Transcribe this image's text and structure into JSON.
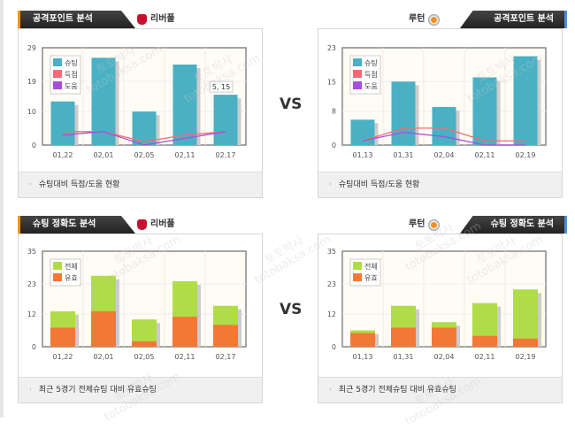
{
  "watermark": "토토박사 totobaksa.com",
  "vs": "VS",
  "colors": {
    "shots": "#4ab0c4",
    "goals": "#f46a74",
    "assists": "#a84ed8",
    "total": "#b0dc48",
    "valid": "#f47835"
  },
  "panels": [
    {
      "header": "공격포인트 분석",
      "team": "리버풀",
      "footer": "슈팅대비 득점/도움 현황",
      "chart_data": {
        "type": "bar+line",
        "categories": [
          "01,22",
          "02,01",
          "02,05",
          "02,11",
          "02,17"
        ],
        "yticks": [
          "0",
          "10",
          "19",
          "29"
        ],
        "ylim": [
          0,
          29
        ],
        "series": [
          {
            "name": "슈팅",
            "kind": "bar",
            "values": [
              13,
              26,
              10,
              24,
              15
            ]
          },
          {
            "name": "득점",
            "kind": "line",
            "values": [
              4,
              4,
              1,
              3,
              4
            ]
          },
          {
            "name": "도움",
            "kind": "line",
            "values": [
              3,
              4,
              0,
              2,
              4
            ]
          }
        ],
        "tooltip": "5, 15"
      }
    },
    {
      "header": "공격포인트 분석",
      "team": "루턴",
      "footer": "슈팅대비 득점/도움 현황",
      "chart_data": {
        "type": "bar+line",
        "categories": [
          "01,13",
          "01,31",
          "02,04",
          "02,11",
          "02,19"
        ],
        "yticks": [
          "0",
          "8",
          "15",
          "23"
        ],
        "ylim": [
          0,
          23
        ],
        "series": [
          {
            "name": "슈팅",
            "kind": "bar",
            "values": [
              6,
              15,
              9,
              16,
              21
            ]
          },
          {
            "name": "득점",
            "kind": "line",
            "values": [
              1,
              4,
              4,
              1,
              1
            ]
          },
          {
            "name": "도움",
            "kind": "line",
            "values": [
              1,
              3,
              2,
              0,
              0
            ]
          }
        ]
      }
    },
    {
      "header": "슈팅 정확도 분석",
      "team": "리버풀",
      "footer": "최근 5경기 전체슈팅 대비 유효슈팅",
      "chart_data": {
        "type": "bar",
        "categories": [
          "01,22",
          "02,01",
          "02,05",
          "02,11",
          "02,17"
        ],
        "yticks": [
          "0",
          "12",
          "23",
          "35"
        ],
        "ylim": [
          0,
          35
        ],
        "series": [
          {
            "name": "전체",
            "kind": "bar",
            "values": [
              13,
              26,
              10,
              24,
              15
            ]
          },
          {
            "name": "유효",
            "kind": "bar",
            "values": [
              7,
              13,
              2,
              11,
              8
            ]
          }
        ]
      }
    },
    {
      "header": "슈팅 정확도 분석",
      "team": "루턴",
      "footer": "최근 5경기 전체슈팅 대비 유효슈팅",
      "chart_data": {
        "type": "bar",
        "categories": [
          "01,13",
          "01,31",
          "02,04",
          "02,11",
          "02,19"
        ],
        "yticks": [
          "0",
          "12",
          "23",
          "35"
        ],
        "ylim": [
          0,
          35
        ],
        "series": [
          {
            "name": "전체",
            "kind": "bar",
            "values": [
              6,
              15,
              9,
              16,
              21
            ]
          },
          {
            "name": "유효",
            "kind": "bar",
            "values": [
              5,
              7,
              7,
              4,
              3
            ]
          }
        ]
      }
    }
  ]
}
